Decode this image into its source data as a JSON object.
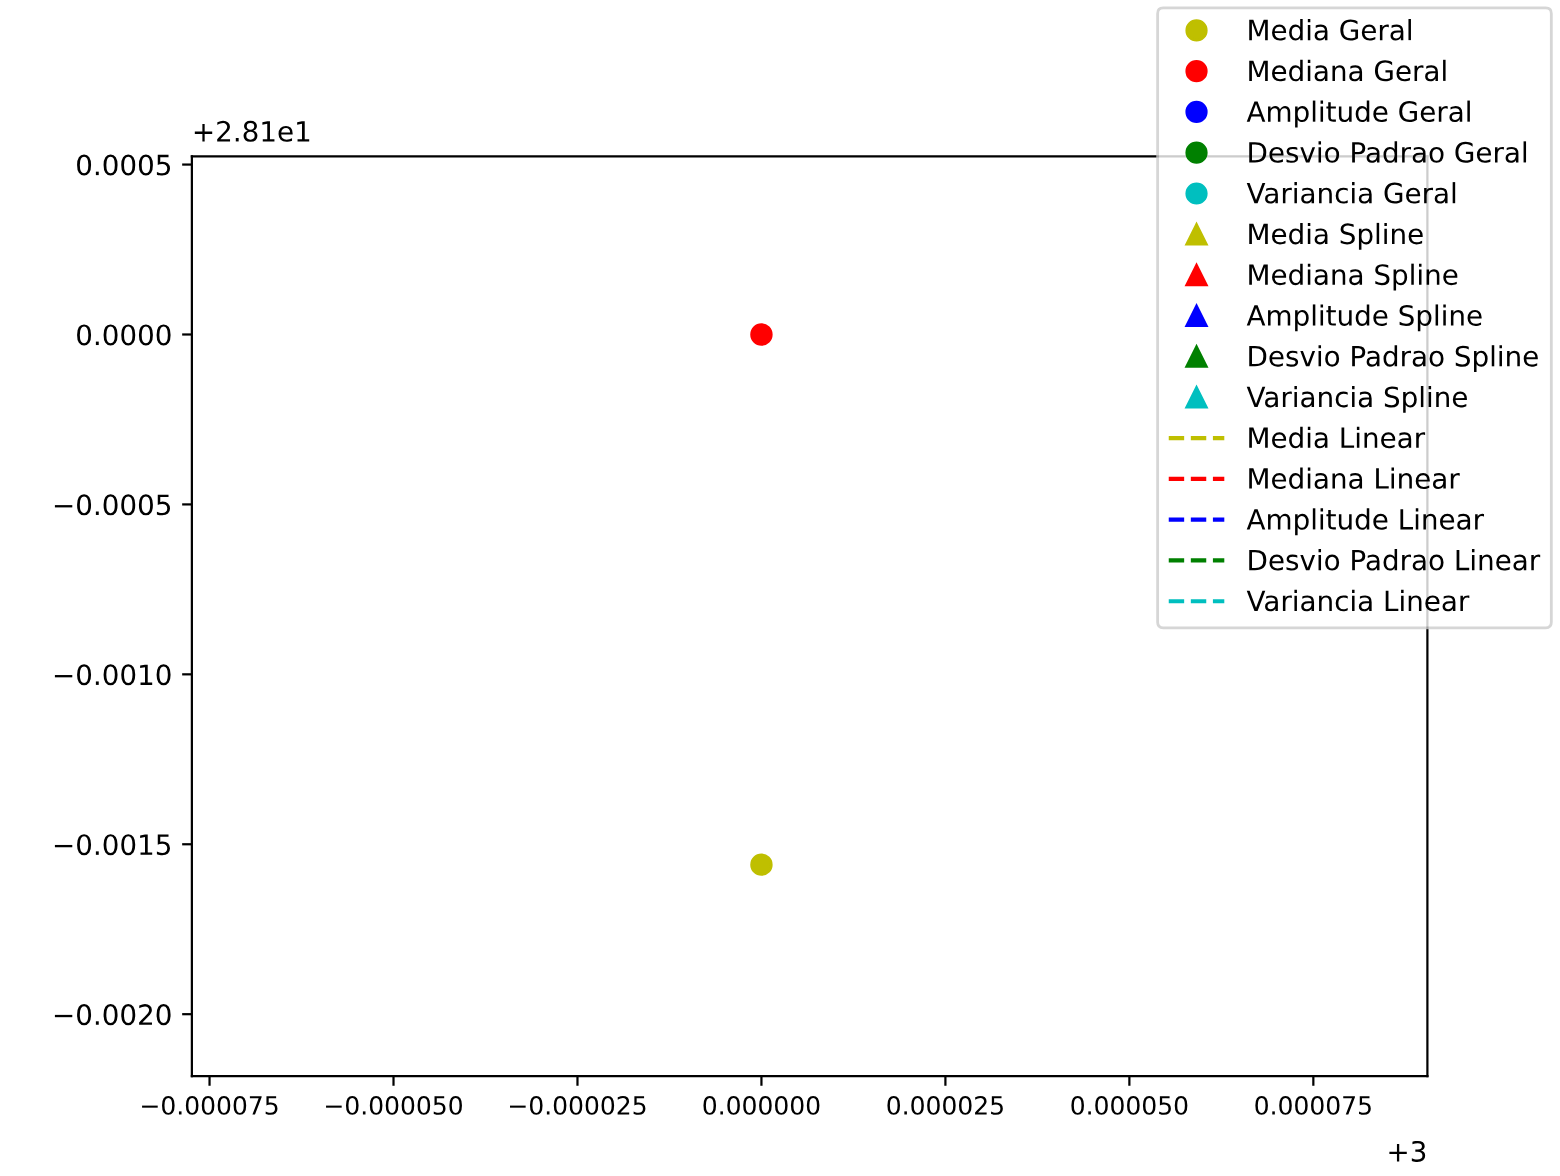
{
  "chart_data": {
    "type": "scatter",
    "xlim": [
      -7.74e-05,
      9.05e-05
    ],
    "ylim": [
      -0.002182,
      0.000524
    ],
    "x": [
      0.0
    ],
    "xticks": [
      {
        "value": -7.5e-05,
        "label": "−0.000075"
      },
      {
        "value": -5e-05,
        "label": "−0.000050"
      },
      {
        "value": -2.5e-05,
        "label": "−0.000025"
      },
      {
        "value": 0.0,
        "label": "0.000000"
      },
      {
        "value": 2.5e-05,
        "label": "0.000025"
      },
      {
        "value": 5e-05,
        "label": "0.000050"
      },
      {
        "value": 7.5e-05,
        "label": "0.000075"
      }
    ],
    "yticks": [
      {
        "value": 0.0005,
        "label": "0.0005"
      },
      {
        "value": 0.0,
        "label": "0.0000"
      },
      {
        "value": -0.0005,
        "label": "−0.0005"
      },
      {
        "value": -0.001,
        "label": "−0.0010"
      },
      {
        "value": -0.0015,
        "label": "−0.0015"
      },
      {
        "value": -0.002,
        "label": "−0.0020"
      }
    ],
    "annotations": [
      "+2.81e1",
      "+3"
    ],
    "legend": "top right",
    "series": [
      {
        "name": "Media Geral",
        "marker": "circle",
        "color": "#bfbf00",
        "values": [
          -0.00156
        ]
      },
      {
        "name": "Mediana Geral",
        "marker": "circle",
        "color": "#ff0000",
        "values": [
          0.0
        ]
      },
      {
        "name": "Amplitude Geral",
        "marker": "circle",
        "color": "#0000ff",
        "values": [
          null
        ]
      },
      {
        "name": "Desvio Padrao Geral",
        "marker": "circle",
        "color": "#008000",
        "values": [
          null
        ]
      },
      {
        "name": "Variancia Geral",
        "marker": "circle",
        "color": "#00bfbf",
        "values": [
          null
        ]
      },
      {
        "name": "Media Spline",
        "marker": "triangle",
        "color": "#bfbf00",
        "values": [
          null
        ]
      },
      {
        "name": "Mediana Spline",
        "marker": "triangle",
        "color": "#ff0000",
        "values": [
          null
        ]
      },
      {
        "name": "Amplitude Spline",
        "marker": "triangle",
        "color": "#0000ff",
        "values": [
          null
        ]
      },
      {
        "name": "Desvio Padrao Spline",
        "marker": "triangle",
        "color": "#008000",
        "values": [
          null
        ]
      },
      {
        "name": "Variancia Spline",
        "marker": "triangle",
        "color": "#00bfbf",
        "values": [
          null
        ]
      },
      {
        "name": "Media Linear",
        "type": "line",
        "line_style": "dashed",
        "color": "#bfbf00",
        "values": [
          null
        ]
      },
      {
        "name": "Mediana Linear",
        "type": "line",
        "line_style": "dashed",
        "color": "#ff0000",
        "values": [
          null
        ]
      },
      {
        "name": "Amplitude Linear",
        "type": "line",
        "line_style": "dashed",
        "color": "#0000ff",
        "values": [
          null
        ]
      },
      {
        "name": "Desvio Padrao Linear",
        "type": "line",
        "line_style": "dashed",
        "color": "#008000",
        "values": [
          null
        ]
      },
      {
        "name": "Variancia Linear",
        "type": "line",
        "line_style": "dashed",
        "color": "#00bfbf",
        "values": [
          null
        ]
      }
    ]
  }
}
